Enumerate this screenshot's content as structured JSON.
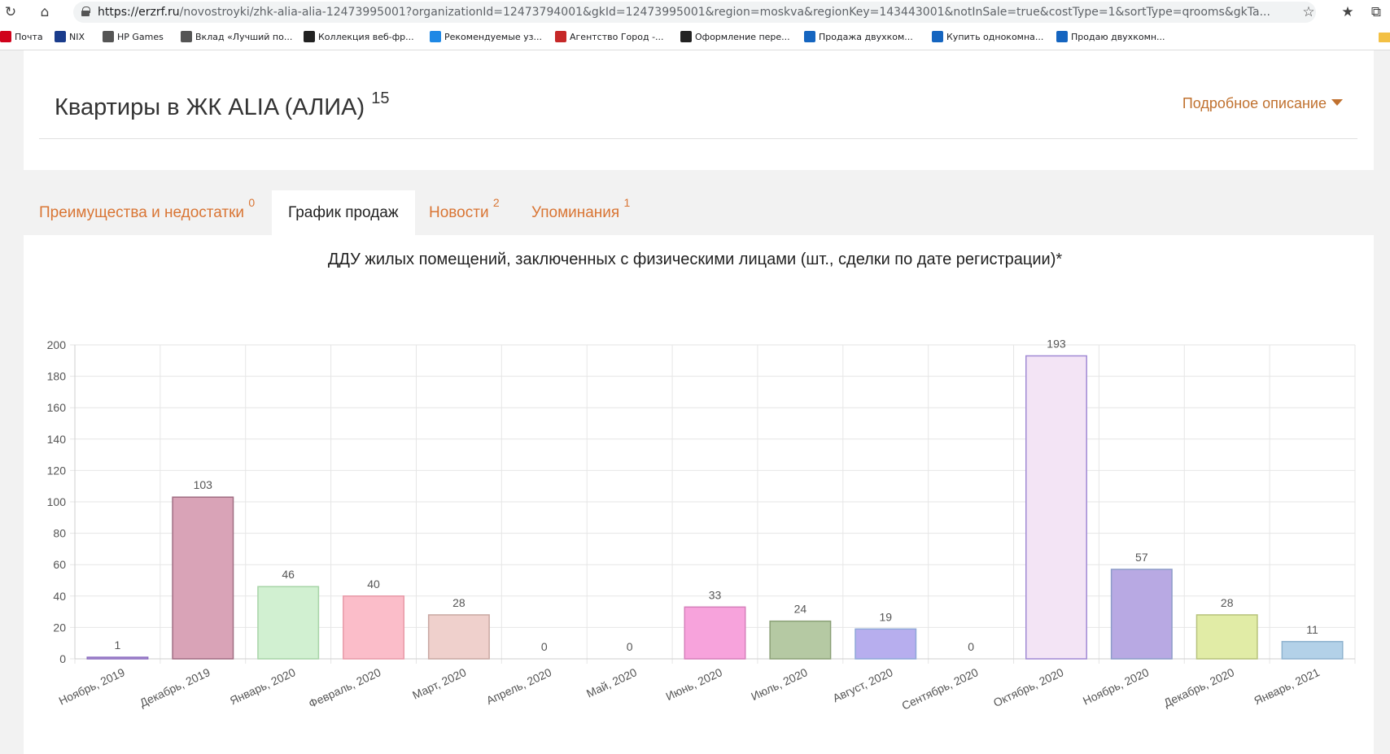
{
  "browser": {
    "url_domain": "https://erzrf.ru",
    "url_rest": "/novostroyki/zhk-alia-alia-12473995001?organizationId=12473794001&gkId=12473995001&region=moskva&regionKey=143443001&notInSale=true&costType=1&sortType=qrooms&gkTa...",
    "bookmarks": [
      {
        "label": "Почта",
        "icon_color": "#d0021b"
      },
      {
        "label": "NIX",
        "icon_color": "#1a3c8c"
      },
      {
        "label": "HP Games",
        "icon_color": "#555555"
      },
      {
        "label": "Вклад «Лучший по...",
        "icon_color": "#555555"
      },
      {
        "label": "Коллекция веб-фр...",
        "icon_color": "#222222"
      },
      {
        "label": "Рекомендуемые уз...",
        "icon_color": "#1e88e5"
      },
      {
        "label": "Агентство Город -...",
        "icon_color": "#c62828"
      },
      {
        "label": "Оформление пере...",
        "icon_color": "#222222"
      },
      {
        "label": "Продажа двухком...",
        "icon_color": "#1565c0"
      },
      {
        "label": "Купить однокомна...",
        "icon_color": "#1565c0"
      },
      {
        "label": "Продаю двухкомн...",
        "icon_color": "#1565c0"
      }
    ]
  },
  "header": {
    "title": "Квартиры в ЖК ALIA (АЛИА)",
    "title_count": "15",
    "detail_link": "Подробное описание"
  },
  "tabs": [
    {
      "label": "Преимущества и недостатки",
      "count": "0"
    },
    {
      "label": "График продаж",
      "count": ""
    },
    {
      "label": "Новости",
      "count": "2"
    },
    {
      "label": "Упоминания",
      "count": "1"
    }
  ],
  "active_tab": 1,
  "chart_data": {
    "type": "bar",
    "title": "ДДУ жилых помещений, заключенных с физическими лицами (шт., сделки по дате регистрации)*",
    "xlabel": "",
    "ylabel": "",
    "ylim": [
      0,
      200
    ],
    "yticks": [
      0,
      20,
      40,
      60,
      80,
      100,
      120,
      140,
      160,
      180,
      200
    ],
    "grid": true,
    "legend": "none",
    "categories": [
      "Ноябрь, 2019",
      "Декабрь, 2019",
      "Январь, 2020",
      "Февраль, 2020",
      "Март, 2020",
      "Апрель, 2020",
      "Май, 2020",
      "Июнь, 2020",
      "Июль, 2020",
      "Август, 2020",
      "Сентябрь, 2020",
      "Октябрь, 2020",
      "Ноябрь, 2020",
      "Декабрь, 2020",
      "Январь, 2021"
    ],
    "values": [
      1,
      103,
      46,
      40,
      28,
      0,
      0,
      33,
      24,
      19,
      0,
      193,
      57,
      28,
      11
    ],
    "bar_colors": [
      "#c9b3e6",
      "#d9a3b7",
      "#d1f0d1",
      "#fbbdc9",
      "#efd0cc",
      "#cccccc",
      "#cccccc",
      "#f7a3dc",
      "#b5c9a3",
      "#b7aeee",
      "#cccccc",
      "#f3e4f5",
      "#b8a9e3",
      "#e1eca6",
      "#b3d1e8"
    ],
    "border_colors": [
      "#8a6bbf",
      "#a06d82",
      "#a7d4a7",
      "#e89aa8",
      "#c9a8a3",
      "#999999",
      "#999999",
      "#d67fbb",
      "#8ba077",
      "#8fa8d8",
      "#999999",
      "#a08ad4",
      "#8c9cc8",
      "#b6c27a",
      "#8fb3cf"
    ]
  }
}
